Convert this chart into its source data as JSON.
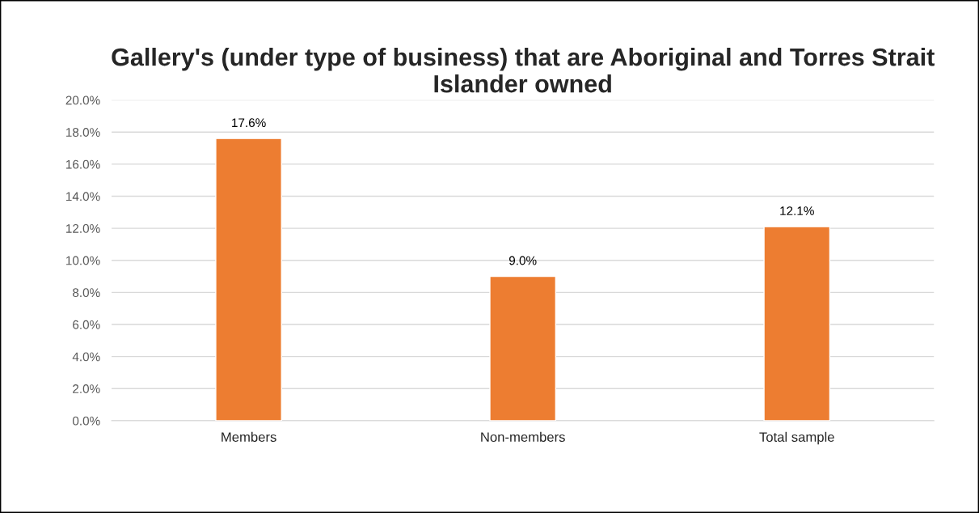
{
  "chart_data": {
    "type": "bar",
    "title": "Gallery's (under type of business) that are Aboriginal and Torres Strait Islander owned",
    "categories": [
      "Members",
      "Non-members",
      "Total sample"
    ],
    "values": [
      17.6,
      9.0,
      12.1
    ],
    "value_labels": [
      "17.6%",
      "9.0%",
      "12.1%"
    ],
    "color": "#ed7d31",
    "ylim": [
      0,
      20
    ],
    "yticks": [
      {
        "value": 0,
        "label": "0.0%"
      },
      {
        "value": 2,
        "label": "2.0%"
      },
      {
        "value": 4,
        "label": "4.0%"
      },
      {
        "value": 6,
        "label": "6.0%"
      },
      {
        "value": 8,
        "label": "8.0%"
      },
      {
        "value": 10,
        "label": "10.0%"
      },
      {
        "value": 12,
        "label": "12.0%"
      },
      {
        "value": 14,
        "label": "14.0%"
      },
      {
        "value": 16,
        "label": "16.0%"
      },
      {
        "value": 18,
        "label": "18.0%"
      },
      {
        "value": 20,
        "label": "20.0%"
      }
    ],
    "grid": "y"
  }
}
